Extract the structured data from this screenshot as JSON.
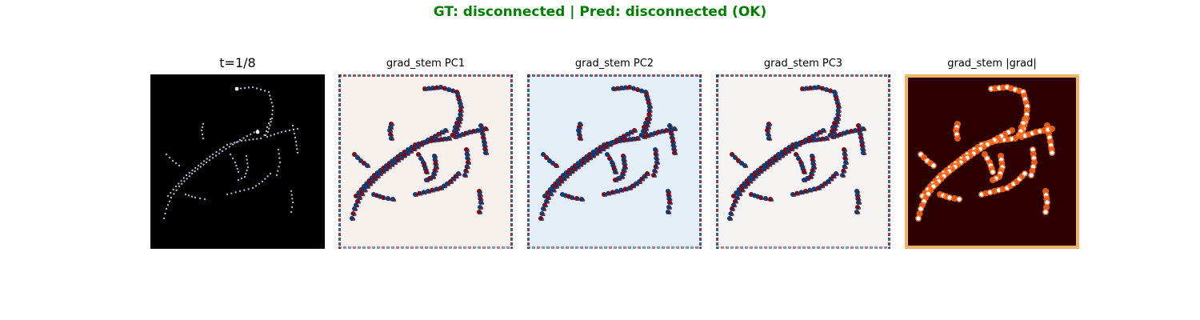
{
  "suptitle": "GT: disconnected | Pred: disconnected (OK)",
  "status_color": "#008000",
  "panels": [
    {
      "title": "t=1/8",
      "kind": "input"
    },
    {
      "title": "grad_stem PC1",
      "kind": "diverging"
    },
    {
      "title": "grad_stem PC2",
      "kind": "diverging"
    },
    {
      "title": "grad_stem PC3",
      "kind": "diverging"
    },
    {
      "title": "grad_stem |grad|",
      "kind": "magnitude"
    }
  ],
  "colors": {
    "input_bg": "#000000",
    "input_dots": "#a9b3c6",
    "div_pos": "#7f0a17",
    "div_neg": "#0f3c73",
    "div_mid": "#f6f4f2",
    "mag_bg": "#2c0000",
    "mag_hot": "#ffffff",
    "mag_warm": "#ff6a1a"
  }
}
